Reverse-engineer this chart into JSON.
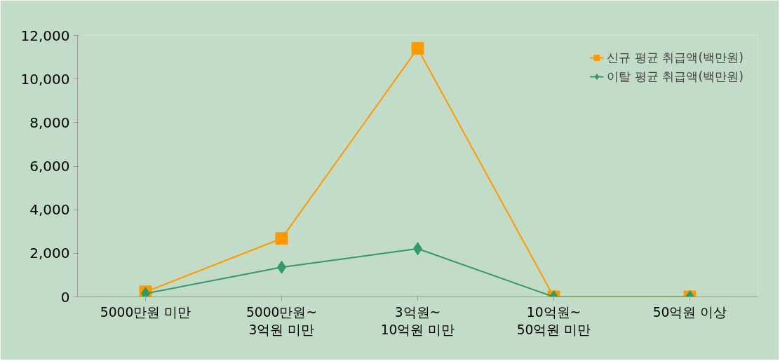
{
  "chart_data": {
    "type": "line",
    "categories": [
      "5000만원 미만",
      "5000만원~\n3억원 미만",
      "3억원~\n10억원 미만",
      "10억원~\n50억원 미만",
      "50억원 이상"
    ],
    "series": [
      {
        "name": "신규 평균 취급액(백만원)",
        "color": "#ff9900",
        "marker": "square",
        "values": [
          230,
          2680,
          11400,
          0,
          0
        ]
      },
      {
        "name": "이탈 평균 취급액(백만원)",
        "color": "#339966",
        "marker": "diamond",
        "values": [
          150,
          1360,
          2210,
          0,
          0
        ]
      }
    ],
    "ylim": [
      0,
      12000
    ],
    "yticks": [
      {
        "value": 0,
        "label": "0"
      },
      {
        "value": 2000,
        "label": "2,000"
      },
      {
        "value": 4000,
        "label": "4,000"
      },
      {
        "value": 6000,
        "label": "6,000"
      },
      {
        "value": 8000,
        "label": "8,000"
      },
      {
        "value": 10000,
        "label": "10,000"
      },
      {
        "value": 12000,
        "label": "12,000"
      }
    ],
    "grid": false,
    "legend": "top right",
    "line_style": "solid"
  }
}
